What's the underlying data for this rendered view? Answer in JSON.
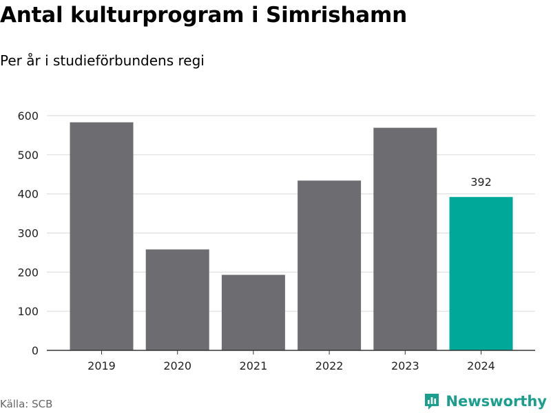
{
  "header": {
    "title": "Antal kulturprogram i Simrishamn",
    "subtitle": "Per år i studieförbundens regi"
  },
  "footer": {
    "source": "Källa: SCB",
    "brand": "Newsworthy"
  },
  "colors": {
    "bar": "#6d6c71",
    "highlight": "#00a89a",
    "grid": "#dddddd",
    "axis": "#333333",
    "brand": "#1a9e8e"
  },
  "chart_data": {
    "type": "bar",
    "categories": [
      "2019",
      "2020",
      "2021",
      "2022",
      "2023",
      "2024"
    ],
    "values": [
      583,
      258,
      193,
      434,
      569,
      392
    ],
    "highlight_index": 5,
    "data_labels": [
      null,
      null,
      null,
      null,
      null,
      "392"
    ],
    "yticks": [
      0,
      100,
      200,
      300,
      400,
      500,
      600
    ],
    "ylim": [
      0,
      600
    ],
    "grid": true,
    "legend": "none"
  }
}
